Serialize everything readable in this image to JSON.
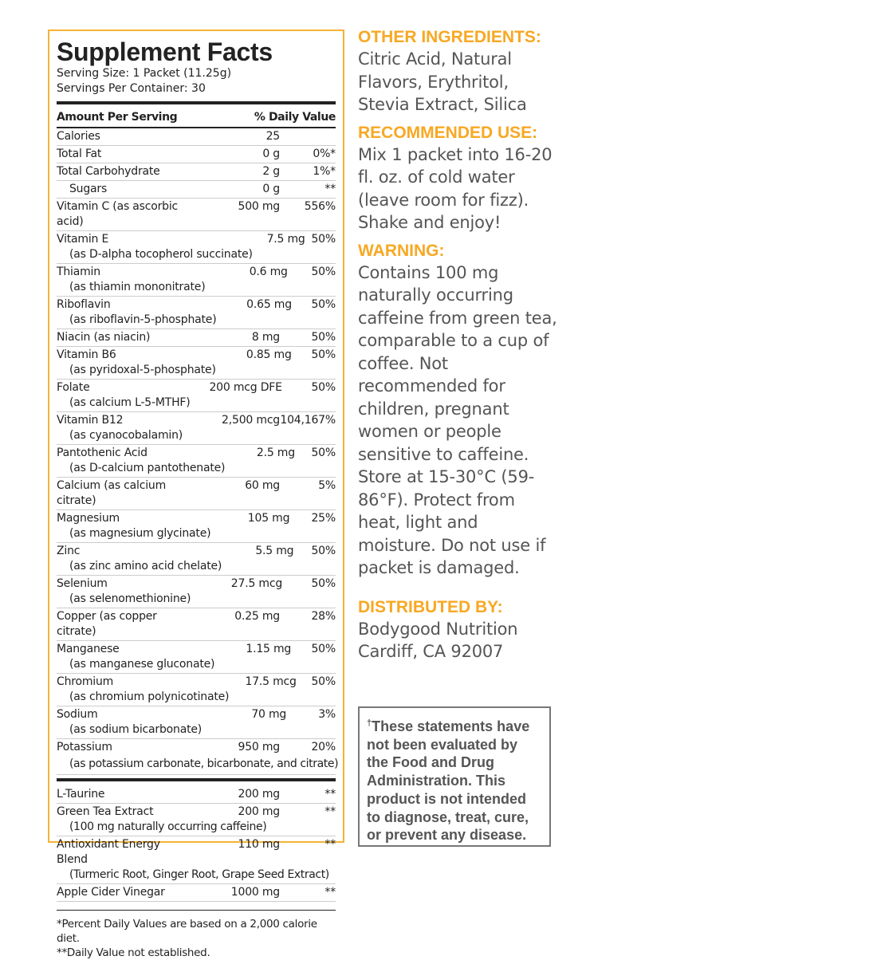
{
  "facts": {
    "title": "Supplement Facts",
    "serving_size": "Serving Size: 1 Packet (11.25g)",
    "servings_per_container": "Servings Per Container: 30",
    "header_amount": "Amount Per Serving",
    "header_dv": "% Daily Value",
    "rows": [
      {
        "name": "Calories",
        "amount": "25",
        "dv": ""
      },
      {
        "name": "Total Fat",
        "amount": "0 g",
        "dv": "0%*"
      },
      {
        "name": "Total Carbohydrate",
        "amount": "2 g",
        "dv": "1%*"
      },
      {
        "name": "Sugars",
        "amount": "0 g",
        "dv": "**",
        "indent": true
      },
      {
        "name": "Vitamin C (as ascorbic acid)",
        "amount": "500 mg",
        "dv": "556%"
      },
      {
        "name": "Vitamin E",
        "source": "(as D-alpha tocopherol succinate)",
        "amount": "7.5 mg",
        "dv": "50%"
      },
      {
        "name": "Thiamin",
        "source": "(as thiamin mononitrate)",
        "amount": "0.6 mg",
        "dv": "50%"
      },
      {
        "name": "Riboflavin",
        "source": "(as riboflavin-5-phosphate)",
        "amount": "0.65 mg",
        "dv": "50%"
      },
      {
        "name": "Niacin (as niacin)",
        "amount": "8 mg",
        "dv": "50%"
      },
      {
        "name": "Vitamin B6",
        "source": "(as pyridoxal-5-phosphate)",
        "amount": "0.85 mg",
        "dv": "50%"
      },
      {
        "name": "Folate",
        "source": "(as calcium L-5-MTHF)",
        "amount": "200 mcg DFE",
        "dv": "50%"
      },
      {
        "name": "Vitamin B12",
        "source": "(as cyanocobalamin)",
        "amount": "2,500 mcg",
        "dv": "104,167%"
      },
      {
        "name": "Pantothenic Acid",
        "source": "(as D-calcium pantothenate)",
        "amount": "2.5 mg",
        "dv": "50%"
      },
      {
        "name": "Calcium (as calcium citrate)",
        "amount": "60 mg",
        "dv": "5%"
      },
      {
        "name": "Magnesium",
        "source": "(as magnesium glycinate)",
        "amount": "105 mg",
        "dv": "25%"
      },
      {
        "name": "Zinc",
        "source": "(as zinc amino acid chelate)",
        "amount": "5.5 mg",
        "dv": "50%"
      },
      {
        "name": "Selenium",
        "source": "(as selenomethionine)",
        "amount": "27.5 mcg",
        "dv": "50%"
      },
      {
        "name": "Copper (as copper citrate)",
        "amount": "0.25 mg",
        "dv": "28%"
      },
      {
        "name": "Manganese",
        "source": "(as manganese gluconate)",
        "amount": "1.15 mg",
        "dv": "50%"
      },
      {
        "name": "Chromium",
        "source": "(as chromium polynicotinate)",
        "amount": "17.5 mcg",
        "dv": "50%"
      },
      {
        "name": "Sodium",
        "source": "(as sodium bicarbonate)",
        "amount": "70 mg",
        "dv": "3%"
      },
      {
        "name": "Potassium",
        "source": "(as potassium carbonate, bicarbonate, and citrate)",
        "amount": "950 mg",
        "dv": "20%"
      }
    ],
    "other_rows": [
      {
        "name": "L-Taurine",
        "amount": "200 mg",
        "dv": "**"
      },
      {
        "name": "Green Tea Extract",
        "source": "(100 mg naturally occurring caffeine)",
        "amount": "200 mg",
        "dv": "**"
      },
      {
        "name": "Antioxidant Energy Blend",
        "source": "(Turmeric Root, Ginger Root, Grape Seed Extract)",
        "amount": "110 mg",
        "dv": "**"
      },
      {
        "name": "Apple Cider Vinegar",
        "amount": "1000 mg",
        "dv": "**"
      }
    ],
    "footnote1": "*Percent Daily Values are based on a 2,000 calorie diet.",
    "footnote2": "**Daily Value not established."
  },
  "right": {
    "other_ingredients_heading": "OTHER INGREDIENTS:",
    "other_ingredients": "Citric Acid, Natural Flavors, Erythritol, Stevia Extract, Silica",
    "recommended_heading": "RECOMMENDED USE:",
    "recommended": "Mix 1 packet into 16-20 fl. oz. of cold water (leave room for fizz). Shake and enjoy!",
    "warning_heading": "WARNING:",
    "warning": "Contains 100 mg naturally occurring caffeine from green tea, comparable to a cup of coffee. Not recommended for children, pregnant women or people sensitive to caffeine. Store at 15-30°C (59-86°F). Protect from heat, light and moisture. Do not use if packet is damaged.",
    "distributed_heading": "DISTRIBUTED BY:",
    "distributed_line1": "Bodygood Nutrition",
    "distributed_line2": "Cardiff, CA 92007"
  },
  "disclaimer": {
    "mark": "†",
    "text": "These statements have not been evaluated by the Food and Drug Administration. This product is not intended to diagnose, treat, cure, or prevent any disease."
  },
  "colors": {
    "accent": "#f7a823",
    "border": "#f5b335",
    "text": "#555555"
  }
}
